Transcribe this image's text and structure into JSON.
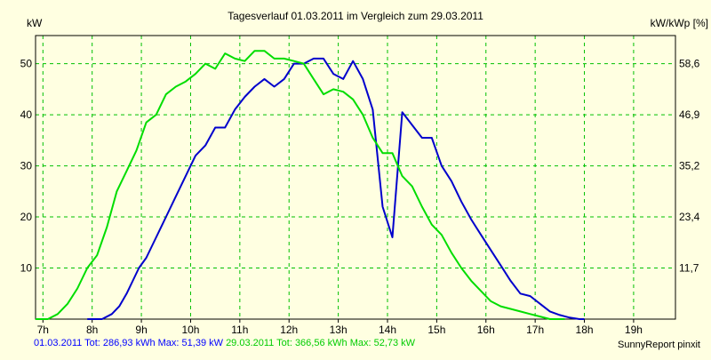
{
  "colors": {
    "background": "#ffffe1",
    "grid": "#00c000",
    "series_1": "#0000cc",
    "series_2": "#00dd00"
  },
  "chart_data": {
    "type": "line",
    "title": "Tagesverlauf 01.03.2011 im Vergleich zum 29.03.2011",
    "ylabel": "kW",
    "y2label": "kW/kWp [%]",
    "xlabel": "",
    "xlim": [
      6.85,
      19.85
    ],
    "ylim": [
      0,
      55.5
    ],
    "grid": true,
    "x_ticks": [
      {
        "value": 7,
        "label": "7h"
      },
      {
        "value": 8,
        "label": "8h"
      },
      {
        "value": 9,
        "label": "9h"
      },
      {
        "value": 10,
        "label": "10h"
      },
      {
        "value": 11,
        "label": "11h"
      },
      {
        "value": 12,
        "label": "12h"
      },
      {
        "value": 13,
        "label": "13h"
      },
      {
        "value": 14,
        "label": "14h"
      },
      {
        "value": 15,
        "label": "15h"
      },
      {
        "value": 16,
        "label": "16h"
      },
      {
        "value": 17,
        "label": "17h"
      },
      {
        "value": 18,
        "label": "18h"
      },
      {
        "value": 19,
        "label": "19h"
      }
    ],
    "y_ticks": [
      {
        "value": 10,
        "label": "10"
      },
      {
        "value": 20,
        "label": "20"
      },
      {
        "value": 30,
        "label": "30"
      },
      {
        "value": 40,
        "label": "40"
      },
      {
        "value": 50,
        "label": "50"
      }
    ],
    "y2_ticks": [
      {
        "value": 10,
        "label": "11,7"
      },
      {
        "value": 20,
        "label": "23,4"
      },
      {
        "value": 30,
        "label": "35,2"
      },
      {
        "value": 40,
        "label": "46,9"
      },
      {
        "value": 50,
        "label": "58,6"
      }
    ],
    "series": [
      {
        "name": "01.03.2011",
        "color": "#0000cc",
        "points": [
          [
            7.9,
            0
          ],
          [
            8.2,
            0
          ],
          [
            8.4,
            1
          ],
          [
            8.55,
            2.5
          ],
          [
            8.7,
            5
          ],
          [
            8.85,
            8
          ],
          [
            8.95,
            10
          ],
          [
            9.1,
            12
          ],
          [
            9.3,
            16
          ],
          [
            9.5,
            20
          ],
          [
            9.7,
            24
          ],
          [
            9.9,
            28
          ],
          [
            10.1,
            32
          ],
          [
            10.3,
            34
          ],
          [
            10.5,
            37.5
          ],
          [
            10.7,
            37.5
          ],
          [
            10.9,
            41
          ],
          [
            11.1,
            43.5
          ],
          [
            11.3,
            45.5
          ],
          [
            11.5,
            47
          ],
          [
            11.7,
            45.5
          ],
          [
            11.9,
            47
          ],
          [
            12.1,
            50
          ],
          [
            12.3,
            50
          ],
          [
            12.5,
            51
          ],
          [
            12.7,
            51
          ],
          [
            12.9,
            48
          ],
          [
            13.1,
            47
          ],
          [
            13.3,
            50.5
          ],
          [
            13.5,
            47
          ],
          [
            13.7,
            41
          ],
          [
            13.9,
            22
          ],
          [
            14.1,
            16
          ],
          [
            14.3,
            40.5
          ],
          [
            14.5,
            38
          ],
          [
            14.7,
            35.5
          ],
          [
            14.9,
            35.5
          ],
          [
            15.1,
            30
          ],
          [
            15.3,
            27
          ],
          [
            15.5,
            23
          ],
          [
            15.7,
            19.5
          ],
          [
            15.9,
            16.5
          ],
          [
            16.1,
            13.5
          ],
          [
            16.3,
            10.5
          ],
          [
            16.5,
            7.5
          ],
          [
            16.7,
            5
          ],
          [
            16.9,
            4.5
          ],
          [
            17.1,
            3
          ],
          [
            17.3,
            1.5
          ],
          [
            17.5,
            0.8
          ],
          [
            17.7,
            0.3
          ],
          [
            17.9,
            0
          ],
          [
            18.0,
            0
          ]
        ]
      },
      {
        "name": "29.03.2011",
        "color": "#00dd00",
        "points": [
          [
            6.85,
            0
          ],
          [
            7.1,
            0
          ],
          [
            7.3,
            1
          ],
          [
            7.5,
            3
          ],
          [
            7.7,
            6
          ],
          [
            7.9,
            10
          ],
          [
            8.1,
            12.5
          ],
          [
            8.3,
            18
          ],
          [
            8.5,
            25
          ],
          [
            8.7,
            29
          ],
          [
            8.9,
            33
          ],
          [
            9.1,
            38.5
          ],
          [
            9.3,
            40
          ],
          [
            9.5,
            44
          ],
          [
            9.7,
            45.5
          ],
          [
            9.9,
            46.5
          ],
          [
            10.1,
            48
          ],
          [
            10.3,
            50
          ],
          [
            10.5,
            49
          ],
          [
            10.7,
            52
          ],
          [
            10.9,
            51
          ],
          [
            11.1,
            50.5
          ],
          [
            11.3,
            52.5
          ],
          [
            11.5,
            52.5
          ],
          [
            11.7,
            51
          ],
          [
            11.9,
            51
          ],
          [
            12.1,
            50.5
          ],
          [
            12.3,
            50
          ],
          [
            12.5,
            47
          ],
          [
            12.7,
            44
          ],
          [
            12.9,
            45
          ],
          [
            13.1,
            44.5
          ],
          [
            13.3,
            43
          ],
          [
            13.5,
            40
          ],
          [
            13.7,
            35.5
          ],
          [
            13.9,
            32.5
          ],
          [
            14.1,
            32.5
          ],
          [
            14.3,
            28
          ],
          [
            14.5,
            26
          ],
          [
            14.7,
            22
          ],
          [
            14.9,
            18.5
          ],
          [
            15.1,
            16.5
          ],
          [
            15.3,
            13
          ],
          [
            15.5,
            10
          ],
          [
            15.7,
            7.5
          ],
          [
            15.9,
            5.5
          ],
          [
            16.1,
            3.5
          ],
          [
            16.3,
            2.5
          ],
          [
            16.5,
            2
          ],
          [
            16.7,
            1.5
          ],
          [
            16.9,
            1
          ],
          [
            17.1,
            0.5
          ],
          [
            17.3,
            0
          ],
          [
            17.6,
            0
          ]
        ]
      }
    ]
  },
  "footer": {
    "series_1": "01.03.2011 Tot: 286,93 kWh Max: 51,39 kW",
    "series_2": "29.03.2011 Tot: 366,56 kWh Max: 52,73 kW",
    "credit": "SunnyReport pinxit"
  }
}
